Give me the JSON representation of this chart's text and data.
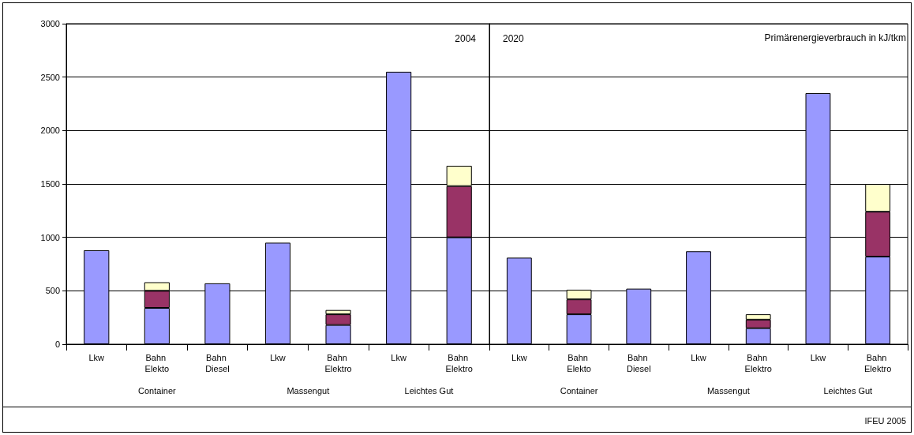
{
  "chart_data": [
    {
      "type": "bar",
      "title": "2004",
      "stacked": true,
      "grid": "y",
      "ylim": [
        0,
        3000
      ],
      "yticks": [
        0,
        500,
        1000,
        1500,
        2000,
        2500,
        3000
      ],
      "categories": [
        "Lkw",
        "Bahn Elekto",
        "Bahn Diesel",
        "Lkw",
        "Bahn Elektro",
        "Lkw",
        "Bahn Elektro"
      ],
      "series": [
        {
          "color": "#9999ff",
          "values": [
            880,
            340,
            570,
            950,
            180,
            2550,
            1000
          ]
        },
        {
          "color": "#993366",
          "values": [
            null,
            160,
            null,
            null,
            100,
            null,
            480
          ]
        },
        {
          "color": "#ffffcc",
          "values": [
            null,
            80,
            null,
            null,
            40,
            null,
            190
          ]
        }
      ],
      "annotations": [
        "Container",
        "Massengut",
        "Leichtes Gut"
      ]
    },
    {
      "type": "bar",
      "title": "2020",
      "stacked": true,
      "grid": "y",
      "tick_labels": "x",
      "ylim": [
        0,
        3000
      ],
      "yticks": [
        0,
        500,
        1000,
        1500,
        2000,
        2500,
        3000
      ],
      "categories": [
        "Lkw",
        "Bahn Elekto",
        "Bahn Diesel",
        "Lkw",
        "Bahn Elektro",
        "Lkw",
        "Bahn Elektro"
      ],
      "series": [
        {
          "color": "#9999ff",
          "values": [
            810,
            280,
            520,
            870,
            150,
            2350,
            820
          ]
        },
        {
          "color": "#993366",
          "values": [
            null,
            140,
            null,
            null,
            80,
            null,
            420
          ]
        },
        {
          "color": "#ffffcc",
          "values": [
            null,
            90,
            null,
            null,
            50,
            null,
            260
          ]
        }
      ],
      "annotations": [
        "Container",
        "Massengut",
        "Leichtes Gut",
        "Primärenergieverbrauch in kJ/tkm",
        "IFEU 2005"
      ]
    }
  ]
}
